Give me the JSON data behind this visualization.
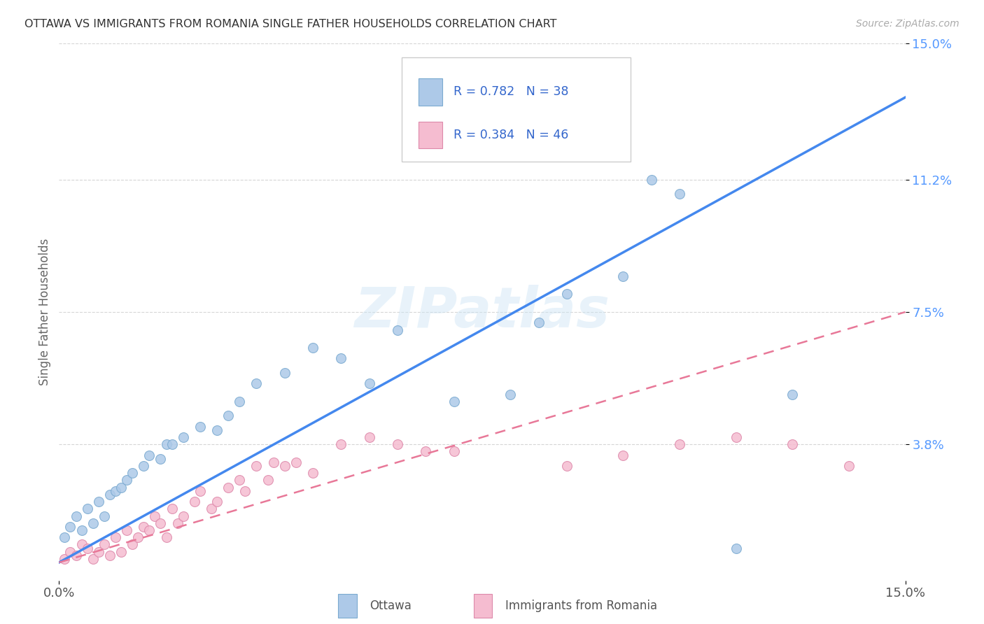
{
  "title": "OTTAWA VS IMMIGRANTS FROM ROMANIA SINGLE FATHER HOUSEHOLDS CORRELATION CHART",
  "source": "Source: ZipAtlas.com",
  "ylabel": "Single Father Households",
  "xlim": [
    0.0,
    0.15
  ],
  "ylim": [
    0.0,
    0.15
  ],
  "ytick_positions": [
    0.038,
    0.075,
    0.112,
    0.15
  ],
  "ytick_labels": [
    "3.8%",
    "7.5%",
    "11.2%",
    "15.0%"
  ],
  "xtick_positions": [
    0.0,
    0.15
  ],
  "xtick_labels": [
    "0.0%",
    "15.0%"
  ],
  "background_color": "#ffffff",
  "watermark": "ZIPatlas",
  "grid_color": "#cccccc",
  "ottawa_R": 0.782,
  "ottawa_N": 38,
  "romania_R": 0.384,
  "romania_N": 46,
  "ottawa_scatter_color": "#adc9e8",
  "ottawa_scatter_edge": "#7aaad0",
  "ottawa_line_color": "#4488ee",
  "romania_scatter_color": "#f5bcd0",
  "romania_scatter_edge": "#dd88aa",
  "romania_line_color": "#e87898",
  "ottawa_line_x0": 0.0,
  "ottawa_line_y0": 0.005,
  "ottawa_line_x1": 0.15,
  "ottawa_line_y1": 0.135,
  "romania_line_x0": 0.0,
  "romania_line_y0": 0.005,
  "romania_line_x1": 0.15,
  "romania_line_y1": 0.075,
  "ottawa_x": [
    0.001,
    0.002,
    0.003,
    0.004,
    0.005,
    0.006,
    0.007,
    0.008,
    0.009,
    0.01,
    0.011,
    0.012,
    0.013,
    0.015,
    0.016,
    0.018,
    0.019,
    0.02,
    0.022,
    0.025,
    0.028,
    0.03,
    0.032,
    0.035,
    0.04,
    0.045,
    0.05,
    0.055,
    0.06,
    0.07,
    0.08,
    0.085,
    0.09,
    0.1,
    0.105,
    0.11,
    0.12,
    0.13
  ],
  "ottawa_y": [
    0.012,
    0.015,
    0.018,
    0.014,
    0.02,
    0.016,
    0.022,
    0.018,
    0.024,
    0.025,
    0.026,
    0.028,
    0.03,
    0.032,
    0.035,
    0.034,
    0.038,
    0.038,
    0.04,
    0.043,
    0.042,
    0.046,
    0.05,
    0.055,
    0.058,
    0.065,
    0.062,
    0.055,
    0.07,
    0.05,
    0.052,
    0.072,
    0.08,
    0.085,
    0.112,
    0.108,
    0.009,
    0.052
  ],
  "romania_x": [
    0.001,
    0.002,
    0.003,
    0.004,
    0.005,
    0.006,
    0.007,
    0.008,
    0.009,
    0.01,
    0.011,
    0.012,
    0.013,
    0.014,
    0.015,
    0.016,
    0.017,
    0.018,
    0.019,
    0.02,
    0.021,
    0.022,
    0.024,
    0.025,
    0.027,
    0.028,
    0.03,
    0.032,
    0.033,
    0.035,
    0.037,
    0.038,
    0.04,
    0.042,
    0.045,
    0.05,
    0.055,
    0.06,
    0.065,
    0.07,
    0.09,
    0.1,
    0.11,
    0.12,
    0.13,
    0.14
  ],
  "romania_y": [
    0.006,
    0.008,
    0.007,
    0.01,
    0.009,
    0.006,
    0.008,
    0.01,
    0.007,
    0.012,
    0.008,
    0.014,
    0.01,
    0.012,
    0.015,
    0.014,
    0.018,
    0.016,
    0.012,
    0.02,
    0.016,
    0.018,
    0.022,
    0.025,
    0.02,
    0.022,
    0.026,
    0.028,
    0.025,
    0.032,
    0.028,
    0.033,
    0.032,
    0.033,
    0.03,
    0.038,
    0.04,
    0.038,
    0.036,
    0.036,
    0.032,
    0.035,
    0.038,
    0.04,
    0.038,
    0.032
  ]
}
